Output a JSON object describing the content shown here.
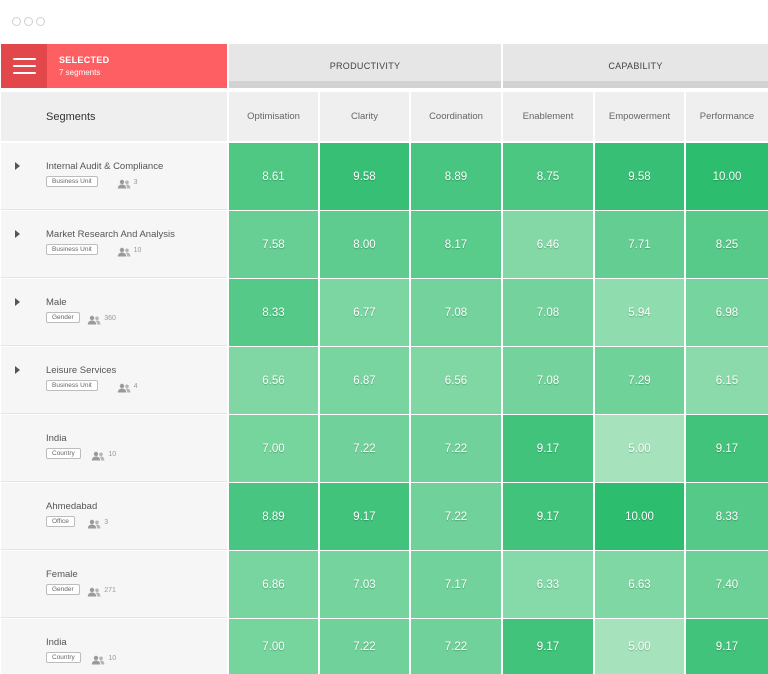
{
  "selected": {
    "title": "SELECTED",
    "subtitle": "7 segments"
  },
  "groups": [
    {
      "label": "PRODUCTIVITY"
    },
    {
      "label": "CAPABILITY"
    }
  ],
  "columns": [
    "Optimisation",
    "Clarity",
    "Coordination",
    "Enablement",
    "Empowerment",
    "Performance"
  ],
  "segments_header": "Segments",
  "rows": [
    {
      "name": "Internal Audit & Compliance",
      "tag": "Business Unit",
      "count": "3",
      "expandable": true,
      "values": [
        "8.61",
        "9.58",
        "8.89",
        "8.75",
        "9.58",
        "10.00"
      ]
    },
    {
      "name": "Market Research And Analysis",
      "tag": "Business Unit",
      "count": "10",
      "expandable": true,
      "values": [
        "7.58",
        "8.00",
        "8.17",
        "6.46",
        "7.71",
        "8.25"
      ]
    },
    {
      "name": "Male",
      "tag": "Gender",
      "count": "360",
      "expandable": true,
      "values": [
        "8.33",
        "6.77",
        "7.08",
        "7.08",
        "5.94",
        "6.98"
      ]
    },
    {
      "name": "Leisure Services",
      "tag": "Business Unit",
      "count": "4",
      "expandable": true,
      "values": [
        "6.56",
        "6.87",
        "6.56",
        "7.08",
        "7.29",
        "6.15"
      ]
    },
    {
      "name": "India",
      "tag": "Country",
      "count": "10",
      "expandable": false,
      "values": [
        "7.00",
        "7.22",
        "7.22",
        "9.17",
        "5.00",
        "9.17"
      ]
    },
    {
      "name": "Ahmedabad",
      "tag": "Office",
      "count": "3",
      "expandable": false,
      "values": [
        "8.89",
        "9.17",
        "7.22",
        "9.17",
        "10.00",
        "8.33"
      ]
    },
    {
      "name": "Female",
      "tag": "Gender",
      "count": "271",
      "expandable": false,
      "values": [
        "6.86",
        "7.03",
        "7.17",
        "6.33",
        "6.63",
        "7.40"
      ]
    },
    {
      "name": "India",
      "tag": "Country",
      "count": "10",
      "expandable": false,
      "values": [
        "7.00",
        "7.22",
        "7.22",
        "9.17",
        "5.00",
        "9.17"
      ]
    }
  ],
  "colors": {
    "accent": "#fe5f62",
    "accent_dark": "#e2474b",
    "heat_low": "#a6e3bd",
    "heat_high": "#2dbd6e"
  },
  "icons": {
    "menu": "hamburger-icon",
    "expand": "caret-right-icon",
    "people": "people-icon"
  }
}
